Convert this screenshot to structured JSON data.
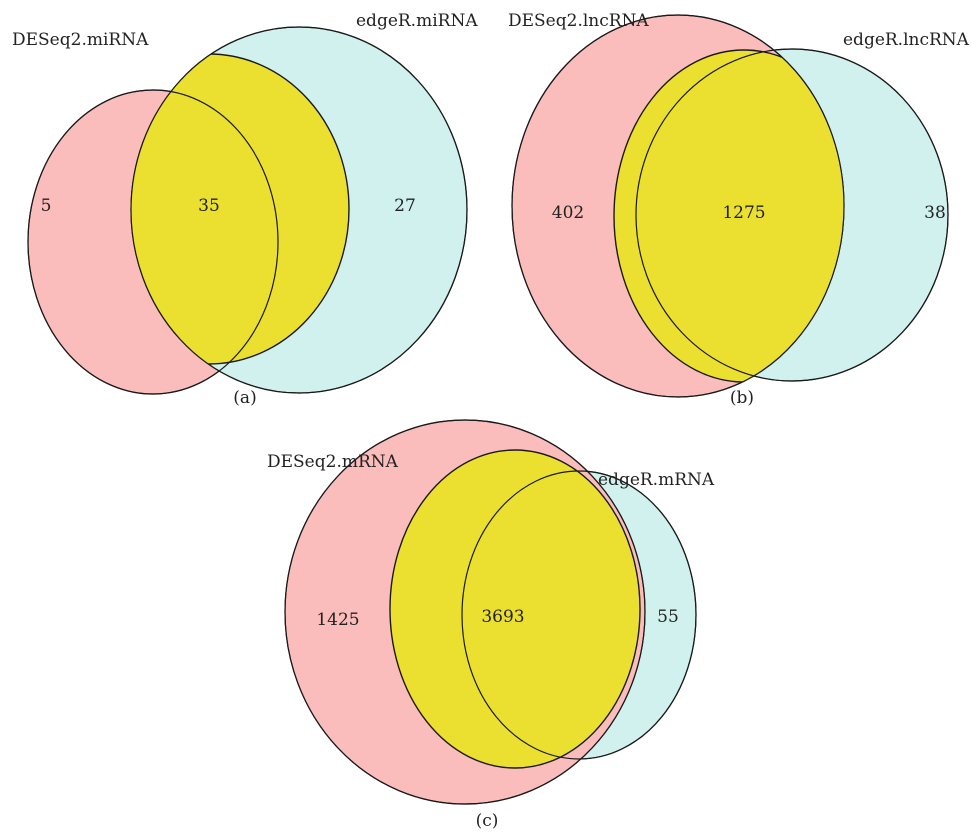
{
  "colors": {
    "deseq2_fill": "#fbbcbc",
    "edger_fill": "#d1f1ef",
    "overlap_fill": "#ebe030",
    "outline": "#1a1a1a"
  },
  "panels": [
    {
      "panel_label": "(a)",
      "set_a_label": "DESeq2.miRNA",
      "set_b_label": "edgeR.miRNA",
      "only_a": "5",
      "both": "35",
      "only_b": "27"
    },
    {
      "panel_label": "(b)",
      "set_a_label": "DESeq2.lncRNA",
      "set_b_label": "edgeR.lncRNA",
      "only_a": "402",
      "both": "1275",
      "only_b": "38"
    },
    {
      "panel_label": "(c)",
      "set_a_label": "DESeq2.mRNA",
      "set_b_label": "edgeR.mRNA",
      "only_a": "1425",
      "both": "3693",
      "only_b": "55"
    }
  ]
}
